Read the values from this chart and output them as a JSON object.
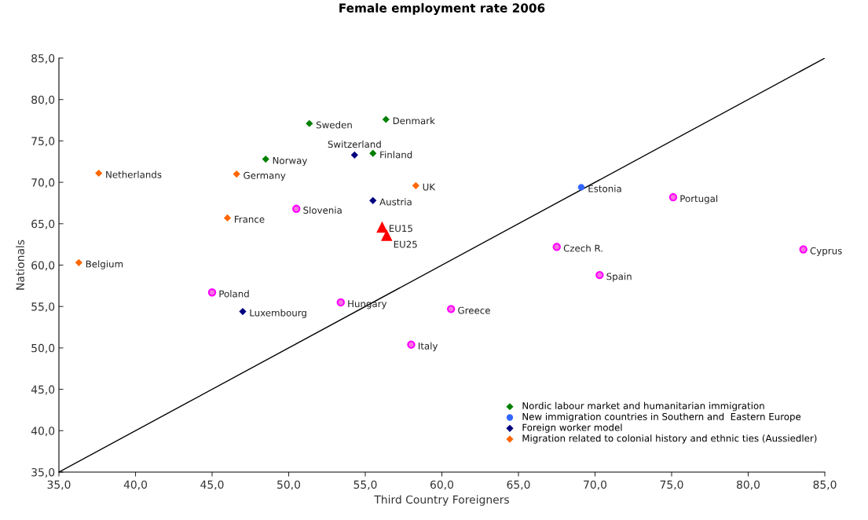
{
  "chart_data": {
    "type": "scatter",
    "title": "Female employment rate 2006",
    "xlabel": "Third Country Foreigners",
    "ylabel": "Nationals",
    "xlim": [
      35,
      85
    ],
    "ylim": [
      35,
      85
    ],
    "xticks": [
      {
        "value": 35,
        "label": "35,0"
      },
      {
        "value": 40,
        "label": "40,0"
      },
      {
        "value": 45,
        "label": "45,0"
      },
      {
        "value": 50,
        "label": "50,0"
      },
      {
        "value": 55,
        "label": "55,0"
      },
      {
        "value": 60,
        "label": "60,0"
      },
      {
        "value": 65,
        "label": "65,0"
      },
      {
        "value": 70,
        "label": "70,0"
      },
      {
        "value": 75,
        "label": "75,0"
      },
      {
        "value": 80,
        "label": "80,0"
      },
      {
        "value": 85,
        "label": "85,0"
      }
    ],
    "yticks": [
      {
        "value": 35,
        "label": "35,0"
      },
      {
        "value": 40,
        "label": "40,0"
      },
      {
        "value": 45,
        "label": "45,0"
      },
      {
        "value": 50,
        "label": "50,0"
      },
      {
        "value": 55,
        "label": "55,0"
      },
      {
        "value": 60,
        "label": "60,0"
      },
      {
        "value": 65,
        "label": "65,0"
      },
      {
        "value": 70,
        "label": "70,0"
      },
      {
        "value": 75,
        "label": "75,0"
      },
      {
        "value": 80,
        "label": "80,0"
      },
      {
        "value": 85,
        "label": "85,0"
      }
    ],
    "grid": false,
    "legend": "bottom right",
    "series": [
      {
        "name": "Nordic labour market and humanitarian immigration",
        "color": "#008000",
        "marker": "diamond",
        "x": [
          51.35,
          56.35,
          55.5,
          48.5
        ],
        "values": [
          77.1,
          77.6,
          73.5,
          72.8
        ]
      },
      {
        "name": "New immigration countries in Southern and  Eastern Europe",
        "color": "#3366ff",
        "marker": "circle",
        "x": [
          69.1
        ],
        "values": [
          69.4
        ]
      },
      {
        "name": "Foreign worker model",
        "color": "#000080",
        "marker": "diamond",
        "x": [
          54.3,
          55.5,
          47.0
        ],
        "values": [
          73.3,
          67.8,
          54.4
        ]
      },
      {
        "name": "Migration related to colonial history and ethnic ties (Aussiedler)",
        "color": "#ff6600",
        "marker": "diamond",
        "x": [
          37.6,
          46.6,
          58.3,
          46.0,
          36.3
        ],
        "values": [
          71.1,
          71.0,
          69.6,
          65.7,
          60.3
        ]
      },
      {
        "color": "#ff00ff",
        "marker": "circle",
        "x": [
          50.5,
          45.0,
          53.4,
          60.6,
          58.0,
          75.1,
          67.5,
          70.3,
          83.6
        ],
        "values": [
          66.8,
          56.7,
          55.5,
          54.7,
          50.4,
          68.2,
          62.2,
          58.8,
          61.9
        ]
      },
      {
        "color": "#ff0000",
        "marker": "triangle",
        "x": [
          56.1,
          56.4
        ],
        "values": [
          64.6,
          63.6
        ]
      },
      {
        "type": "line",
        "color": "#000000",
        "marker": "none",
        "x": [
          35,
          85
        ],
        "values": [
          35,
          85
        ]
      }
    ],
    "annotations": [
      {
        "text": "Sweden",
        "x": 51.35,
        "y": 77.1
      },
      {
        "text": "Denmark",
        "x": 56.35,
        "y": 77.6
      },
      {
        "text": "Finland",
        "x": 55.5,
        "y": 73.5
      },
      {
        "text": "Switzerland",
        "x": 54.3,
        "y": 73.3
      },
      {
        "text": "Norway",
        "x": 48.5,
        "y": 72.8
      },
      {
        "text": "Estonia",
        "x": 69.1,
        "y": 69.4
      },
      {
        "text": "Austria",
        "x": 55.5,
        "y": 67.8
      },
      {
        "text": "Luxembourg",
        "x": 47.0,
        "y": 54.4
      },
      {
        "text": "Netherlands",
        "x": 37.6,
        "y": 71.1
      },
      {
        "text": "Germany",
        "x": 46.6,
        "y": 71.0
      },
      {
        "text": "UK",
        "x": 58.3,
        "y": 69.6
      },
      {
        "text": "France",
        "x": 46.0,
        "y": 65.7
      },
      {
        "text": "Belgium",
        "x": 36.3,
        "y": 60.3
      },
      {
        "text": "Slovenia",
        "x": 50.5,
        "y": 66.8
      },
      {
        "text": "Poland",
        "x": 45.0,
        "y": 56.7
      },
      {
        "text": "Hungary",
        "x": 53.4,
        "y": 55.5
      },
      {
        "text": "Greece",
        "x": 60.6,
        "y": 54.7
      },
      {
        "text": "Italy",
        "x": 58.0,
        "y": 50.4
      },
      {
        "text": "Portugal",
        "x": 75.1,
        "y": 68.2
      },
      {
        "text": "Czech R.",
        "x": 67.5,
        "y": 62.2
      },
      {
        "text": "Spain",
        "x": 70.3,
        "y": 58.8
      },
      {
        "text": "Cyprus",
        "x": 83.6,
        "y": 61.9
      },
      {
        "text": "EU15",
        "x": 56.1,
        "y": 64.6
      },
      {
        "text": "EU25",
        "x": 56.4,
        "y": 63.6
      }
    ]
  }
}
